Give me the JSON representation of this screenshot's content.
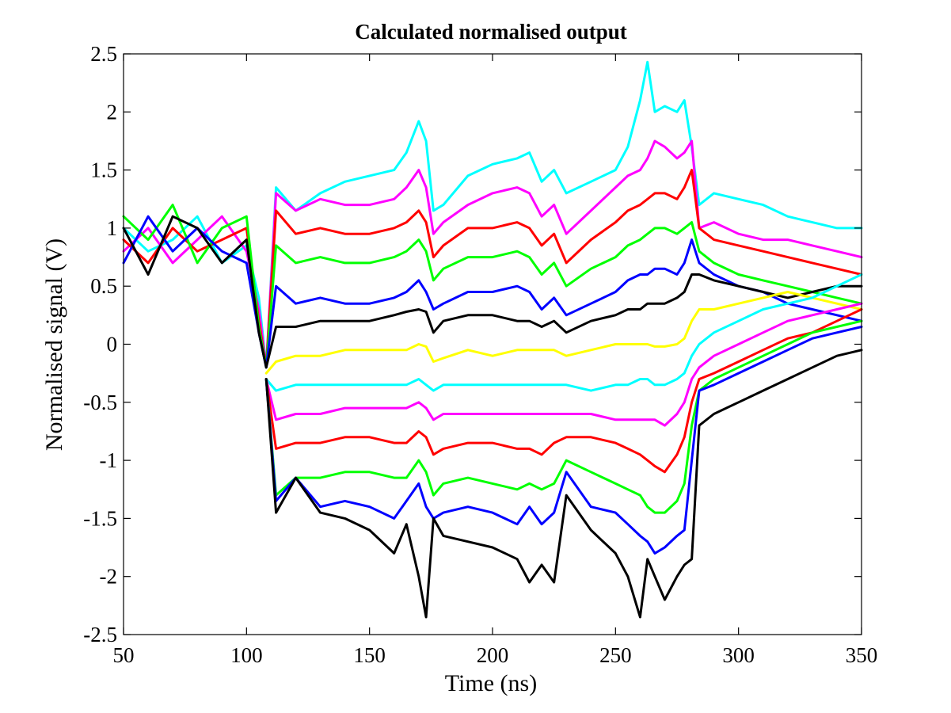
{
  "chart_data": {
    "type": "line",
    "title": "Calculated normalised output",
    "xlabel": "Time (ns)",
    "ylabel": "Normalised signal (V)",
    "xlim": [
      50,
      350
    ],
    "ylim": [
      -2.5,
      2.5
    ],
    "xticks": [
      "50",
      "100",
      "150",
      "200",
      "250",
      "300",
      "350"
    ],
    "yticks": [
      "2.5",
      "2",
      "1.5",
      "1",
      "0.5",
      "0",
      "-0.5",
      "-1",
      "-1.5",
      "-2",
      "-2.5"
    ],
    "grid": false,
    "legend": "none",
    "x": [
      50,
      60,
      70,
      80,
      90,
      100,
      105,
      108,
      112,
      120,
      130,
      140,
      150,
      160,
      165,
      170,
      173,
      176,
      180,
      190,
      200,
      210,
      215,
      220,
      225,
      230,
      240,
      250,
      255,
      260,
      263,
      266,
      270,
      275,
      278,
      281,
      284,
      290,
      300,
      310,
      320,
      330,
      340,
      350
    ],
    "series": [
      {
        "color": "#00ffff",
        "values": [
          1.0,
          0.8,
          0.9,
          1.1,
          0.7,
          0.85,
          0.4,
          -0.2,
          1.35,
          1.15,
          1.3,
          1.4,
          1.45,
          1.5,
          1.65,
          1.92,
          1.75,
          1.15,
          1.2,
          1.45,
          1.55,
          1.6,
          1.65,
          1.4,
          1.5,
          1.3,
          1.4,
          1.5,
          1.7,
          2.1,
          2.43,
          2.0,
          2.05,
          2.0,
          2.1,
          1.7,
          1.2,
          1.3,
          1.25,
          1.2,
          1.1,
          1.05,
          1.0,
          1.0
        ]
      },
      {
        "color": "#ff00ff",
        "values": [
          0.8,
          1.0,
          0.7,
          0.9,
          1.1,
          0.8,
          0.3,
          -0.2,
          1.3,
          1.15,
          1.25,
          1.2,
          1.2,
          1.25,
          1.35,
          1.5,
          1.35,
          0.95,
          1.05,
          1.2,
          1.3,
          1.35,
          1.3,
          1.1,
          1.2,
          0.95,
          1.15,
          1.35,
          1.45,
          1.5,
          1.6,
          1.75,
          1.7,
          1.6,
          1.65,
          1.75,
          1.0,
          1.05,
          0.95,
          0.9,
          0.9,
          0.85,
          0.8,
          0.75
        ]
      },
      {
        "color": "#ff0000",
        "values": [
          0.9,
          0.7,
          1.0,
          0.8,
          0.9,
          1.0,
          0.2,
          -0.2,
          1.15,
          0.95,
          1.0,
          0.95,
          0.95,
          1.0,
          1.05,
          1.15,
          1.05,
          0.75,
          0.85,
          1.0,
          1.0,
          1.05,
          1.0,
          0.85,
          0.95,
          0.7,
          0.9,
          1.05,
          1.15,
          1.2,
          1.25,
          1.3,
          1.3,
          1.25,
          1.35,
          1.5,
          1.0,
          0.9,
          0.85,
          0.8,
          0.75,
          0.7,
          0.65,
          0.6
        ]
      },
      {
        "color": "#00ff00",
        "values": [
          1.1,
          0.9,
          1.2,
          0.7,
          1.0,
          1.1,
          0.15,
          -0.2,
          0.85,
          0.7,
          0.75,
          0.7,
          0.7,
          0.75,
          0.8,
          0.9,
          0.8,
          0.55,
          0.65,
          0.75,
          0.75,
          0.8,
          0.75,
          0.6,
          0.7,
          0.5,
          0.65,
          0.75,
          0.85,
          0.9,
          0.95,
          1.0,
          1.0,
          0.95,
          1.0,
          1.05,
          0.8,
          0.7,
          0.6,
          0.55,
          0.5,
          0.45,
          0.4,
          0.35
        ]
      },
      {
        "color": "#0000ff",
        "values": [
          0.7,
          1.1,
          0.8,
          1.0,
          0.8,
          0.7,
          0.1,
          -0.2,
          0.5,
          0.35,
          0.4,
          0.35,
          0.35,
          0.4,
          0.45,
          0.55,
          0.45,
          0.3,
          0.35,
          0.45,
          0.45,
          0.5,
          0.45,
          0.3,
          0.4,
          0.25,
          0.35,
          0.45,
          0.55,
          0.6,
          0.6,
          0.65,
          0.65,
          0.6,
          0.7,
          0.9,
          0.7,
          0.6,
          0.5,
          0.45,
          0.35,
          0.3,
          0.25,
          0.2
        ]
      },
      {
        "color": "#000000",
        "values": [
          1.0,
          0.6,
          1.1,
          1.0,
          0.7,
          0.9,
          0.1,
          -0.2,
          0.15,
          0.15,
          0.2,
          0.2,
          0.2,
          0.25,
          0.28,
          0.3,
          0.28,
          0.1,
          0.2,
          0.25,
          0.25,
          0.2,
          0.2,
          0.15,
          0.2,
          0.1,
          0.2,
          0.25,
          0.3,
          0.3,
          0.35,
          0.35,
          0.35,
          0.4,
          0.45,
          0.6,
          0.6,
          0.55,
          0.5,
          0.45,
          0.4,
          0.45,
          0.5,
          0.5
        ]
      },
      {
        "color": "#ffff00",
        "values": [
          null,
          null,
          null,
          null,
          null,
          null,
          null,
          -0.25,
          -0.15,
          -0.1,
          -0.1,
          -0.05,
          -0.05,
          -0.05,
          -0.05,
          0.0,
          -0.02,
          -0.15,
          -0.12,
          -0.05,
          -0.1,
          -0.05,
          -0.05,
          -0.05,
          -0.05,
          -0.1,
          -0.05,
          0.0,
          0.0,
          0.0,
          0.0,
          -0.02,
          -0.02,
          0.0,
          0.05,
          0.2,
          0.3,
          0.3,
          0.35,
          0.4,
          0.45,
          0.4,
          0.35,
          0.3
        ]
      },
      {
        "color": "#00ffff",
        "values": [
          null,
          null,
          null,
          null,
          null,
          null,
          null,
          -0.3,
          -0.4,
          -0.35,
          -0.35,
          -0.35,
          -0.35,
          -0.35,
          -0.35,
          -0.3,
          -0.35,
          -0.4,
          -0.35,
          -0.35,
          -0.35,
          -0.35,
          -0.35,
          -0.35,
          -0.35,
          -0.35,
          -0.4,
          -0.35,
          -0.35,
          -0.3,
          -0.3,
          -0.35,
          -0.35,
          -0.3,
          -0.25,
          -0.1,
          0.0,
          0.1,
          0.2,
          0.3,
          0.35,
          0.4,
          0.5,
          0.6
        ]
      },
      {
        "color": "#ff00ff",
        "values": [
          null,
          null,
          null,
          null,
          null,
          null,
          null,
          -0.3,
          -0.65,
          -0.6,
          -0.6,
          -0.55,
          -0.55,
          -0.55,
          -0.55,
          -0.5,
          -0.55,
          -0.65,
          -0.6,
          -0.6,
          -0.6,
          -0.6,
          -0.6,
          -0.6,
          -0.6,
          -0.6,
          -0.6,
          -0.65,
          -0.65,
          -0.65,
          -0.65,
          -0.65,
          -0.7,
          -0.6,
          -0.5,
          -0.3,
          -0.2,
          -0.1,
          0.0,
          0.1,
          0.2,
          0.25,
          0.3,
          0.35
        ]
      },
      {
        "color": "#ff0000",
        "values": [
          null,
          null,
          null,
          null,
          null,
          null,
          null,
          -0.3,
          -0.9,
          -0.85,
          -0.85,
          -0.8,
          -0.8,
          -0.85,
          -0.85,
          -0.75,
          -0.8,
          -0.95,
          -0.9,
          -0.85,
          -0.85,
          -0.9,
          -0.9,
          -0.95,
          -0.85,
          -0.8,
          -0.8,
          -0.85,
          -0.9,
          -0.95,
          -1.0,
          -1.05,
          -1.1,
          -0.95,
          -0.8,
          -0.5,
          -0.3,
          -0.25,
          -0.15,
          -0.05,
          0.05,
          0.1,
          0.2,
          0.3
        ]
      },
      {
        "color": "#00ff00",
        "values": [
          null,
          null,
          null,
          null,
          null,
          null,
          null,
          -0.3,
          -1.3,
          -1.15,
          -1.15,
          -1.1,
          -1.1,
          -1.15,
          -1.15,
          -1.0,
          -1.1,
          -1.3,
          -1.2,
          -1.15,
          -1.2,
          -1.25,
          -1.2,
          -1.25,
          -1.2,
          -1.0,
          -1.1,
          -1.2,
          -1.25,
          -1.3,
          -1.4,
          -1.45,
          -1.45,
          -1.35,
          -1.2,
          -0.7,
          -0.4,
          -0.3,
          -0.2,
          -0.1,
          0.0,
          0.1,
          0.15,
          0.2
        ]
      },
      {
        "color": "#0000ff",
        "values": [
          null,
          null,
          null,
          null,
          null,
          null,
          null,
          -0.3,
          -1.35,
          -1.15,
          -1.4,
          -1.35,
          -1.4,
          -1.5,
          -1.35,
          -1.2,
          -1.4,
          -1.5,
          -1.45,
          -1.4,
          -1.45,
          -1.55,
          -1.4,
          -1.55,
          -1.45,
          -1.1,
          -1.4,
          -1.45,
          -1.55,
          -1.65,
          -1.7,
          -1.8,
          -1.75,
          -1.65,
          -1.6,
          -1.0,
          -0.4,
          -0.35,
          -0.25,
          -0.15,
          -0.05,
          0.05,
          0.1,
          0.15
        ]
      },
      {
        "color": "#000000",
        "values": [
          null,
          null,
          null,
          null,
          null,
          null,
          null,
          -0.3,
          -1.45,
          -1.15,
          -1.45,
          -1.5,
          -1.6,
          -1.8,
          -1.55,
          -2.0,
          -2.35,
          -1.5,
          -1.65,
          -1.7,
          -1.75,
          -1.85,
          -2.05,
          -1.9,
          -2.05,
          -1.3,
          -1.6,
          -1.8,
          -2.0,
          -2.35,
          -1.85,
          -2.0,
          -2.2,
          -2.0,
          -1.9,
          -1.85,
          -0.7,
          -0.6,
          -0.5,
          -0.4,
          -0.3,
          -0.2,
          -0.1,
          -0.05
        ]
      }
    ]
  }
}
